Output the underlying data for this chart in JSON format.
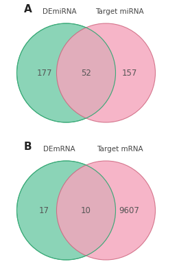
{
  "panel_A": {
    "label": "A",
    "circle1_label": "DEmiRNA",
    "circle2_label": "Target miRNA",
    "left_value": "177",
    "intersect_value": "52",
    "right_value": "157",
    "circle1_color": "#72cba8",
    "circle2_color": "#f5a5bc",
    "circle1_edge": "#3aaa78",
    "circle2_edge": "#cc607a"
  },
  "panel_B": {
    "label": "B",
    "circle1_label": "DEmRNA",
    "circle2_label": "Target mRNA",
    "left_value": "17",
    "intersect_value": "10",
    "right_value": "9607",
    "circle1_color": "#72cba8",
    "circle2_color": "#f5a5bc",
    "circle1_edge": "#3aaa78",
    "circle2_edge": "#cc607a"
  },
  "background_color": "#ffffff",
  "label_fontsize": 7.5,
  "number_fontsize": 8.5,
  "panel_label_fontsize": 11
}
